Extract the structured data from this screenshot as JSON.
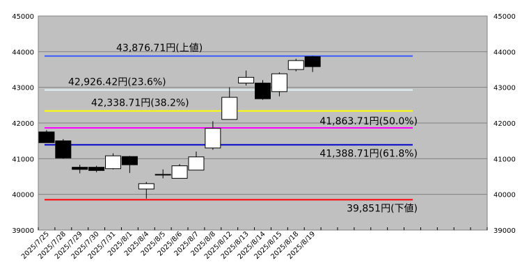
{
  "chart_data": {
    "type": "candlestick",
    "ylim": [
      39000,
      45000
    ],
    "y_ticks": [
      "39000",
      "40000",
      "41000",
      "42000",
      "43000",
      "44000",
      "45000"
    ],
    "grid": true,
    "categories": [
      "2025/7/25",
      "2025/7/28",
      "2025/7/29",
      "2025/7/30",
      "2025/7/31",
      "2025/8/1",
      "2025/8/4",
      "2025/8/5",
      "2025/8/6",
      "2025/8/7",
      "2025/8/8",
      "2025/8/12",
      "2025/8/13",
      "2025/8/14",
      "2025/8/15",
      "2025/8/18",
      "2025/8/19"
    ],
    "slot_count": 27,
    "candles": [
      {
        "date": "2025/7/25",
        "open": 41750,
        "high": 41800,
        "low": 41450,
        "close": 41450
      },
      {
        "date": "2025/7/28",
        "open": 41500,
        "high": 41550,
        "low": 41000,
        "close": 41020
      },
      {
        "date": "2025/7/29",
        "open": 40760,
        "high": 40830,
        "low": 40590,
        "close": 40700
      },
      {
        "date": "2025/7/30",
        "open": 40760,
        "high": 40800,
        "low": 40620,
        "close": 40670
      },
      {
        "date": "2025/7/31",
        "open": 40720,
        "high": 41150,
        "low": 40700,
        "close": 41080
      },
      {
        "date": "2025/8/1",
        "open": 41060,
        "high": 41080,
        "low": 40600,
        "close": 40830
      },
      {
        "date": "2025/8/4",
        "open": 40150,
        "high": 40350,
        "low": 39880,
        "close": 40300
      },
      {
        "date": "2025/8/5",
        "open": 40560,
        "high": 40700,
        "low": 40450,
        "close": 40560
      },
      {
        "date": "2025/8/6",
        "open": 40450,
        "high": 40850,
        "low": 40450,
        "close": 40800
      },
      {
        "date": "2025/8/7",
        "open": 40680,
        "high": 41200,
        "low": 40680,
        "close": 41050
      },
      {
        "date": "2025/8/8",
        "open": 41300,
        "high": 42050,
        "low": 41250,
        "close": 41850
      },
      {
        "date": "2025/8/12",
        "open": 42100,
        "high": 43000,
        "low": 42100,
        "close": 42720
      },
      {
        "date": "2025/8/13",
        "open": 43120,
        "high": 43470,
        "low": 43050,
        "close": 43280
      },
      {
        "date": "2025/8/14",
        "open": 43120,
        "high": 43200,
        "low": 42650,
        "close": 42680
      },
      {
        "date": "2025/8/15",
        "open": 42880,
        "high": 43420,
        "low": 42750,
        "close": 43380
      },
      {
        "date": "2025/8/18",
        "open": 43500,
        "high": 43800,
        "low": 43450,
        "close": 43750
      },
      {
        "date": "2025/8/19",
        "open": 43860,
        "high": 43880,
        "low": 43430,
        "close": 43580
      }
    ],
    "levels": [
      {
        "value": 43876.71,
        "label": "43,876.71円(上値)",
        "color": "#3b5bff",
        "label_side": "left"
      },
      {
        "value": 42926.42,
        "label": "42,926.42円(23.6%)",
        "color": "#dff5f5",
        "label_side": "left"
      },
      {
        "value": 42338.71,
        "label": "42,338.71円(38.2%)",
        "color": "#ffff00",
        "label_side": "left"
      },
      {
        "value": 41863.71,
        "label": "41,863.71円(50.0%)",
        "color": "#ff00ff",
        "label_side": "right"
      },
      {
        "value": 41388.71,
        "label": "41,388.71円(61.8%)",
        "color": "#0000cc",
        "label_side": "right"
      },
      {
        "value": 39851,
        "label": "39,851円(下値)",
        "color": "#ff0000",
        "label_side": "right"
      }
    ],
    "colors": {
      "plot_bg": "#c0c0c0",
      "up_body": "#ffffff",
      "down_body": "#000000",
      "grid": "#808080"
    }
  }
}
